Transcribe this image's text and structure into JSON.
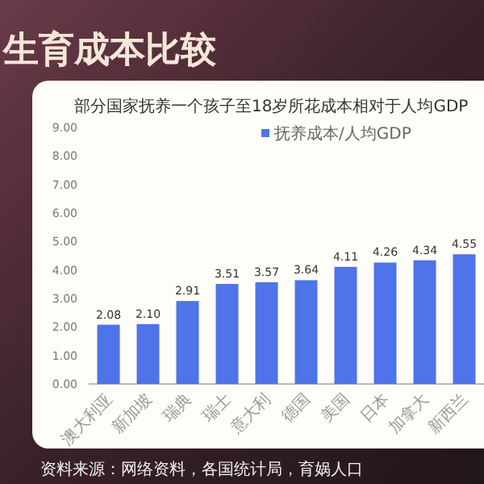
{
  "chart_data": {
    "type": "bar",
    "title": "生育成本比较",
    "subtitle": "部分国家抚养一个孩子至18岁所花成本相对于人均GDP",
    "categories": [
      "澳大利亚",
      "新加坡",
      "瑞典",
      "瑞士",
      "意大利",
      "德国",
      "美国",
      "日本",
      "加拿大",
      "新西兰"
    ],
    "series": [
      {
        "name": "抚养成本/人均GDP",
        "color": "#4f73e8",
        "values": [
          2.08,
          2.1,
          2.91,
          3.51,
          3.57,
          3.64,
          4.11,
          4.26,
          4.34,
          4.55
        ]
      }
    ],
    "ylim": [
      0,
      9
    ],
    "yticks": [
      {
        "value": 0,
        "label": "0.00"
      },
      {
        "value": 1,
        "label": "1.00"
      },
      {
        "value": 2,
        "label": "2.00"
      },
      {
        "value": 3,
        "label": "3.00"
      },
      {
        "value": 4,
        "label": "4.00"
      },
      {
        "value": 5,
        "label": "5.00"
      },
      {
        "value": 6,
        "label": "6.00"
      },
      {
        "value": 7,
        "label": "7.00"
      },
      {
        "value": 8,
        "label": "8.00"
      },
      {
        "value": 9,
        "label": "9.00"
      }
    ],
    "value_labels": [
      "2.08",
      "2.10",
      "2.91",
      "3.51",
      "3.57",
      "3.64",
      "4.11",
      "4.26",
      "4.34",
      "4.55"
    ],
    "legend": "top",
    "grid": false,
    "annotations": [
      "资料来源：网络资料，各国统计局，育娲人口"
    ]
  }
}
